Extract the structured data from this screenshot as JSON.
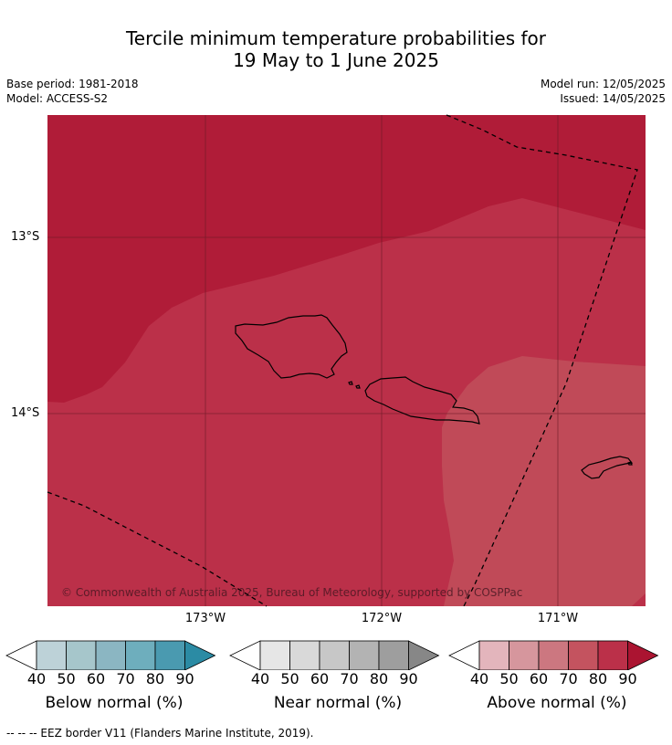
{
  "title": {
    "line1": "Tercile minimum temperature probabilities for",
    "line2": "19 May to 1 June 2025"
  },
  "meta": {
    "base_period": "Base period: 1981-2018",
    "model": "Model: ACCESS-S2",
    "model_run": "Model run: 12/05/2025",
    "issued": "Issued: 14/05/2025"
  },
  "map": {
    "latitude_labels": [
      "13°S",
      "14°S"
    ],
    "longitude_labels": [
      "173°W",
      "172°W",
      "171°W"
    ],
    "copyright": "© Commonwealth of Australia 2025, Bureau of Meteorology, supported by COSPPac",
    "colors": {
      "above_90": "#b01c38",
      "above_80": "#bb3049",
      "above_70": "#c04a58"
    }
  },
  "legends": [
    {
      "title": "Below normal (%)",
      "ticks": [
        "40",
        "50",
        "60",
        "70",
        "80",
        "90"
      ],
      "colors": [
        "#ffffff",
        "#bdd2d8",
        "#a6c6cb",
        "#8bb6c2",
        "#6eaebd",
        "#4a9ab0",
        "#2b8ba4"
      ]
    },
    {
      "title": "Near normal (%)",
      "ticks": [
        "40",
        "50",
        "60",
        "70",
        "80",
        "90"
      ],
      "colors": [
        "#ffffff",
        "#e6e6e6",
        "#d9d9d9",
        "#c7c7c7",
        "#b3b3b3",
        "#9e9e9e",
        "#878787"
      ]
    },
    {
      "title": "Above normal (%)",
      "ticks": [
        "40",
        "50",
        "60",
        "70",
        "80",
        "90"
      ],
      "colors": [
        "#ffffff",
        "#e3b5bc",
        "#d6969d",
        "#cc7780",
        "#c4535f",
        "#bb3049",
        "#ab1431"
      ]
    }
  ],
  "footnote": "--  --  -- EEZ border V11 (Flanders Marine Institute, 2019)."
}
